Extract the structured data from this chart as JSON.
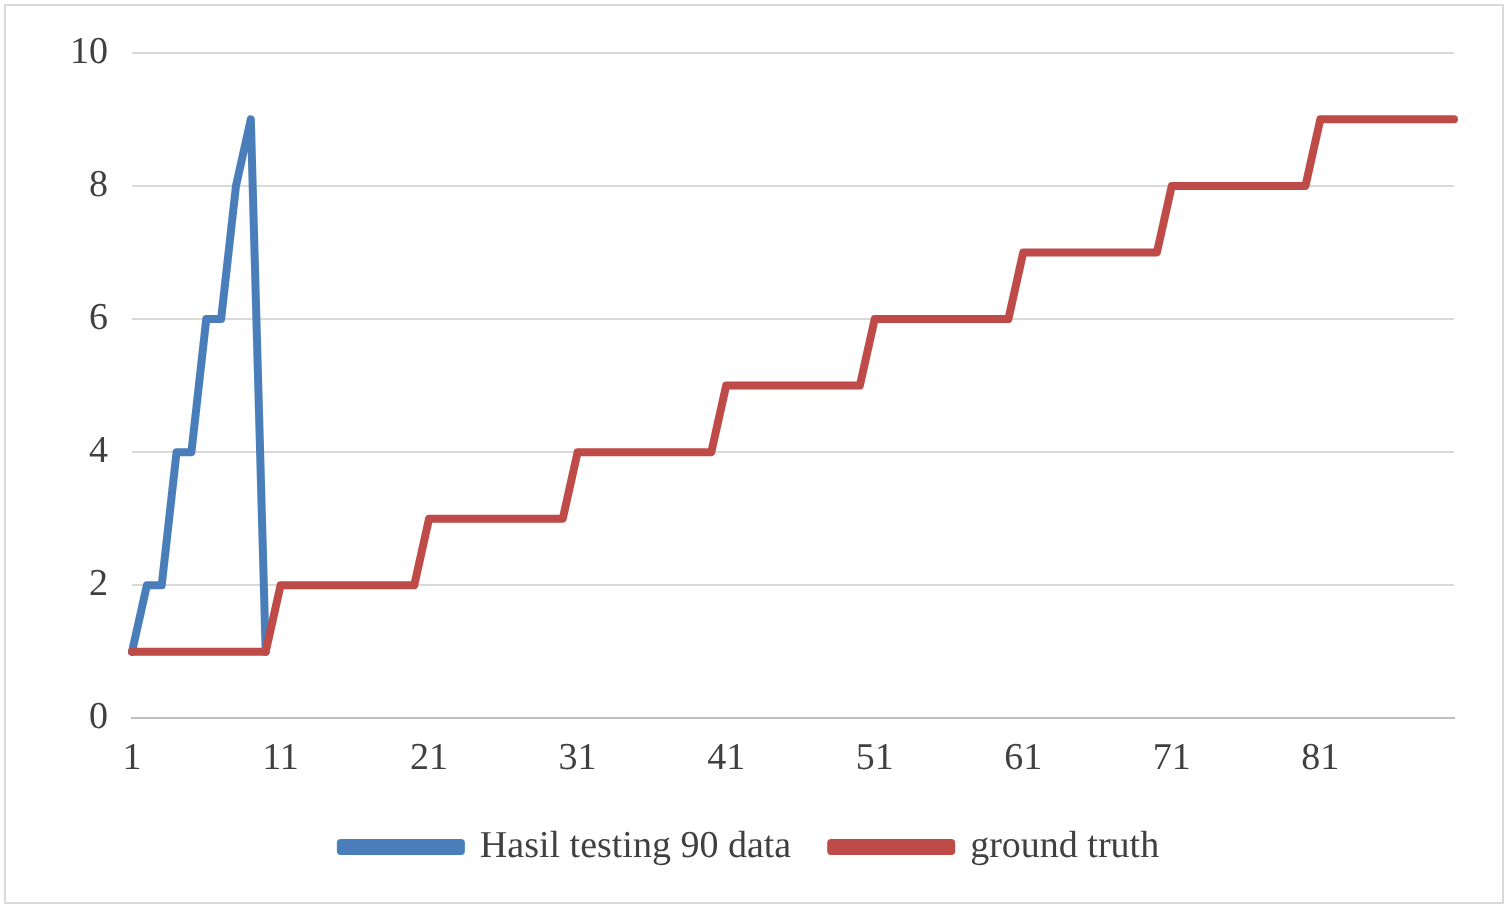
{
  "chart_data": {
    "type": "line",
    "categories": [
      "1",
      null,
      null,
      null,
      null,
      null,
      null,
      null,
      null,
      null,
      "11",
      null,
      null,
      null,
      null,
      null,
      null,
      null,
      null,
      null,
      "21",
      null,
      null,
      null,
      null,
      null,
      null,
      null,
      null,
      null,
      "31",
      null,
      null,
      null,
      null,
      null,
      null,
      null,
      null,
      null,
      "41",
      null,
      null,
      null,
      null,
      null,
      null,
      null,
      null,
      null,
      "51",
      null,
      null,
      null,
      null,
      null,
      null,
      null,
      null,
      null,
      "61",
      null,
      null,
      null,
      null,
      null,
      null,
      null,
      null,
      null,
      "71",
      null,
      null,
      null,
      null,
      null,
      null,
      null,
      null,
      null,
      "81",
      null,
      null,
      null,
      null,
      null,
      null,
      null,
      null,
      null
    ],
    "series": [
      {
        "name": "Hasil testing 90 data",
        "color": "#4a7ebb",
        "values": [
          1,
          2,
          2,
          4,
          4,
          6,
          6,
          8,
          9,
          1,
          null,
          null,
          null,
          null,
          null,
          null,
          null,
          null,
          null,
          null,
          null,
          null,
          null,
          null,
          null,
          null,
          null,
          null,
          null,
          null,
          null,
          null,
          null,
          null,
          null,
          null,
          null,
          null,
          null,
          null,
          null,
          null,
          null,
          null,
          null,
          null,
          null,
          null,
          null,
          null,
          null,
          null,
          null,
          null,
          null,
          null,
          null,
          null,
          null,
          null,
          null,
          null,
          null,
          null,
          null,
          null,
          null,
          null,
          null,
          null,
          null,
          null,
          null,
          null,
          null,
          null,
          null,
          null,
          null,
          null,
          null,
          null,
          null,
          null,
          null,
          null,
          null,
          null,
          null,
          null
        ]
      },
      {
        "name": "ground truth",
        "color": "#be4b48",
        "values": [
          1,
          1,
          1,
          1,
          1,
          1,
          1,
          1,
          1,
          1,
          2,
          2,
          2,
          2,
          2,
          2,
          2,
          2,
          2,
          2,
          3,
          3,
          3,
          3,
          3,
          3,
          3,
          3,
          3,
          3,
          4,
          4,
          4,
          4,
          4,
          4,
          4,
          4,
          4,
          4,
          5,
          5,
          5,
          5,
          5,
          5,
          5,
          5,
          5,
          5,
          6,
          6,
          6,
          6,
          6,
          6,
          6,
          6,
          6,
          6,
          7,
          7,
          7,
          7,
          7,
          7,
          7,
          7,
          7,
          7,
          8,
          8,
          8,
          8,
          8,
          8,
          8,
          8,
          8,
          8,
          9,
          9,
          9,
          9,
          9,
          9,
          9,
          9,
          9,
          9
        ]
      }
    ],
    "ylim": [
      0,
      10
    ],
    "yticks": [
      0,
      2,
      4,
      6,
      8,
      10
    ],
    "grid": "y",
    "legend": "bottom",
    "marker": "none",
    "line_style": "solid"
  }
}
